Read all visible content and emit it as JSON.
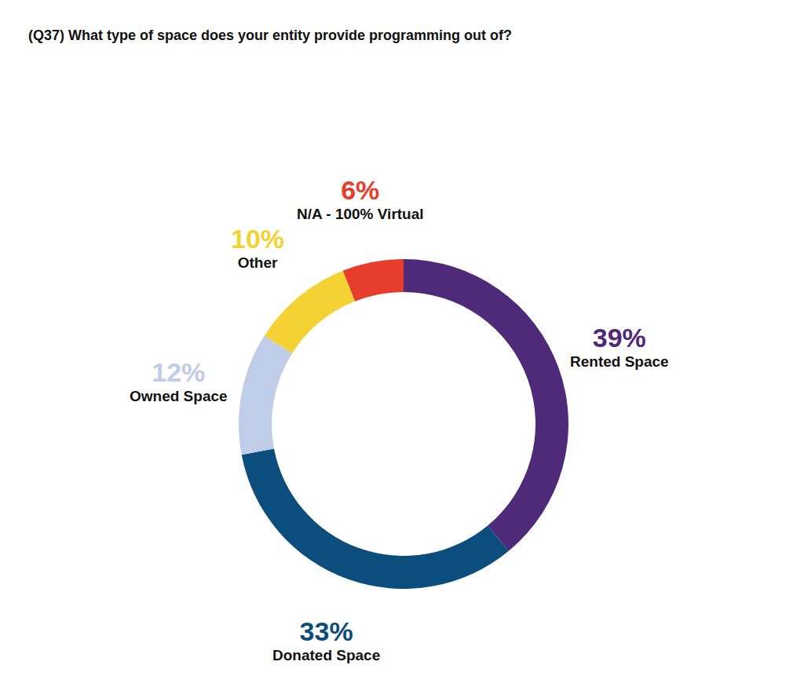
{
  "chart_data": {
    "type": "pie",
    "title": "(Q37) What type of space does your entity provide programming out of?",
    "categories": [
      "Rented Space",
      "Donated Space",
      "Owned Space",
      "Other",
      "N/A - 100% Virtual"
    ],
    "values": [
      39,
      33,
      12,
      10,
      6
    ],
    "value_labels": [
      "39%",
      "33%",
      "12%",
      "10%",
      "6%"
    ],
    "colors": [
      "#4e2a78",
      "#0b4d7d",
      "#bfcde9",
      "#f5d233",
      "#e63d2c"
    ],
    "data_labels": true
  }
}
